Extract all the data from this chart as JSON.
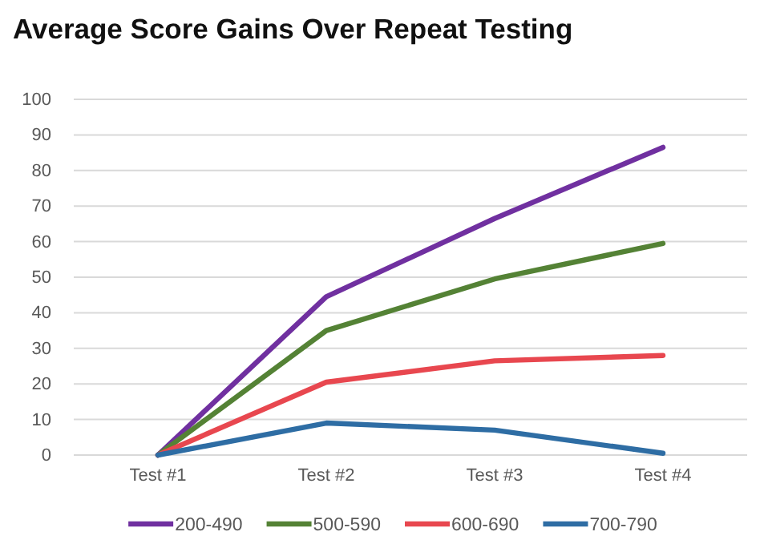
{
  "chart_data": {
    "type": "line",
    "title": "Average Score Gains Over Repeat Testing",
    "categories": [
      "Test #1",
      "Test #2",
      "Test #3",
      "Test #4"
    ],
    "series": [
      {
        "name": "200-490",
        "color": "#7030a0",
        "values": [
          0,
          44.5,
          66.5,
          86.5
        ]
      },
      {
        "name": "500-590",
        "color": "#548235",
        "values": [
          0,
          35,
          49.5,
          59.5
        ]
      },
      {
        "name": "600-690",
        "color": "#e8474f",
        "values": [
          0,
          20.5,
          26.5,
          28
        ]
      },
      {
        "name": "700-790",
        "color": "#2e6da4",
        "values": [
          0,
          9,
          7,
          0.5
        ]
      }
    ],
    "ylim": [
      0,
      100
    ],
    "yticks": [
      0,
      10,
      20,
      30,
      40,
      50,
      60,
      70,
      80,
      90,
      100
    ],
    "grid": "y",
    "legend": "bottom",
    "marker": "none",
    "line_style": "solid"
  }
}
